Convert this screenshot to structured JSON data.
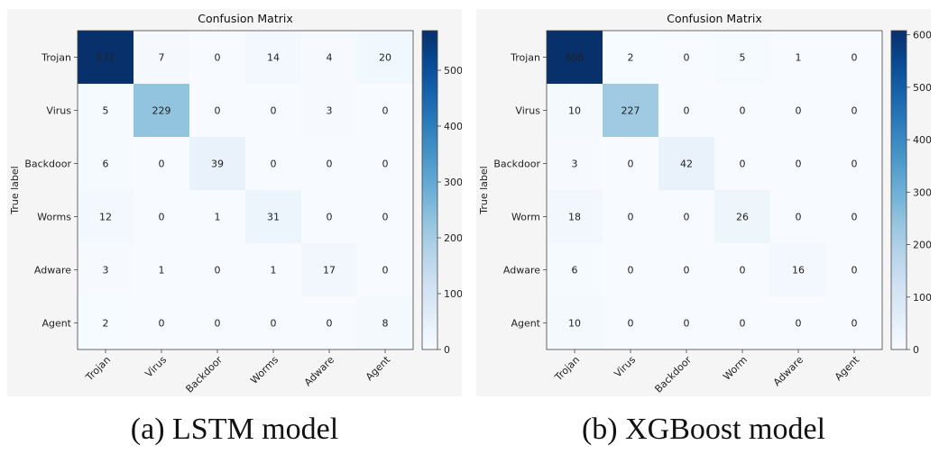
{
  "chart_data": [
    {
      "type": "heatmap",
      "title": "Confusion Matrix",
      "ylabel": "True label",
      "xlabel": "",
      "rows": [
        "Trojan",
        "Virus",
        "Backdoor",
        "Worms",
        "Adware",
        "Agent"
      ],
      "columns": [
        "Trojan",
        "Virus",
        "Backdoor",
        "Worms",
        "Adware",
        "Agent"
      ],
      "values": [
        [
          571,
          7,
          0,
          14,
          4,
          20
        ],
        [
          5,
          229,
          0,
          0,
          3,
          0
        ],
        [
          6,
          0,
          39,
          0,
          0,
          0
        ],
        [
          12,
          0,
          1,
          31,
          0,
          0
        ],
        [
          3,
          1,
          0,
          1,
          17,
          0
        ],
        [
          2,
          0,
          0,
          0,
          0,
          8
        ]
      ],
      "colorbar": {
        "min": 0,
        "max": 571,
        "ticks": [
          0,
          100,
          200,
          300,
          400,
          500
        ],
        "colormap": "Blues"
      },
      "caption": "(a) LSTM model"
    },
    {
      "type": "heatmap",
      "title": "Confusion Matrix",
      "ylabel": "True label",
      "xlabel": "",
      "rows": [
        "Trojan",
        "Virus",
        "Backdoor",
        "Worm",
        "Adware",
        "Agent"
      ],
      "columns": [
        "Trojan",
        "Virus",
        "Backdoor",
        "Worm",
        "Adware",
        "Agent"
      ],
      "values": [
        [
          608,
          2,
          0,
          5,
          1,
          0
        ],
        [
          10,
          227,
          0,
          0,
          0,
          0
        ],
        [
          3,
          0,
          42,
          0,
          0,
          0
        ],
        [
          18,
          0,
          0,
          26,
          0,
          0
        ],
        [
          6,
          0,
          0,
          0,
          16,
          0
        ],
        [
          10,
          0,
          0,
          0,
          0,
          0
        ]
      ],
      "colorbar": {
        "min": 0,
        "max": 608,
        "ticks": [
          0,
          100,
          200,
          300,
          400,
          500,
          600
        ],
        "colormap": "Blues"
      },
      "caption": "(b) XGBoost model"
    }
  ]
}
